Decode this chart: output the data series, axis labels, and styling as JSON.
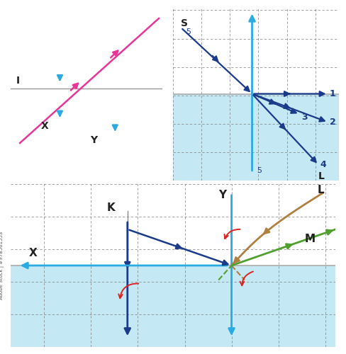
{
  "bg_color": "#ffffff",
  "panel1": {
    "bg_color": "#f5c842",
    "xlim": [
      -4,
      4
    ],
    "ylim": [
      -5,
      5
    ],
    "grid_step": 1.6,
    "cyan_color": "#29abe2",
    "pink_color": "#e9359a",
    "mirror_color": "#aaaaaa"
  },
  "panel2": {
    "bg_bottom": "#c5e8f5",
    "dark_blue": "#1a3a8a",
    "cyan_color": "#29abe2",
    "xlim": [
      -5,
      5.5
    ],
    "ylim": [
      -5.5,
      5.5
    ],
    "grid_step": 1.8
  },
  "panel3": {
    "bg_bottom": "#c5e8f5",
    "dark_blue": "#1a3a8a",
    "cyan_color": "#29abe2",
    "brown_color": "#b08040",
    "green_color": "#50a030",
    "red_color": "#dd2222",
    "xlim": [
      -5.5,
      7
    ],
    "ylim": [
      -5,
      4
    ],
    "grid_step": 1.8,
    "mirror_y": -0.5
  }
}
